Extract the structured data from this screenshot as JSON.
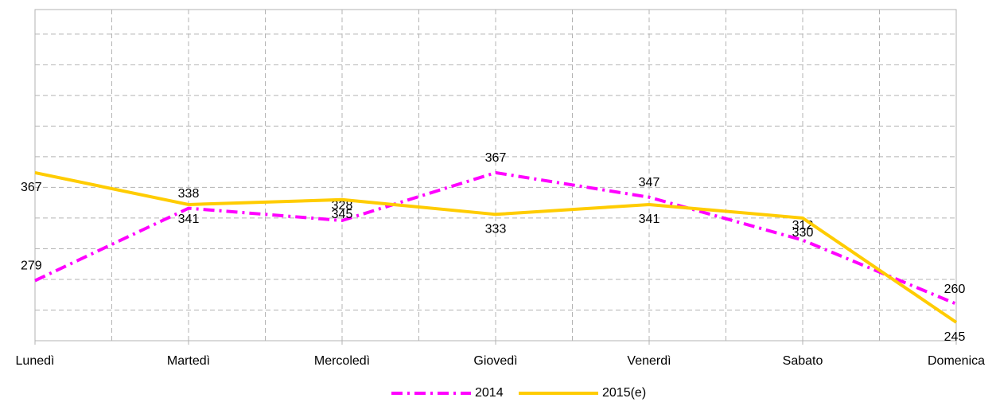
{
  "chart_data": {
    "type": "line",
    "categories": [
      "Lunedì",
      "Martedì",
      "Mercoledì",
      "Giovedì",
      "Venerdì",
      "Sabato",
      "Domenica"
    ],
    "series": [
      {
        "name": "2014",
        "color": "#ff00ff",
        "dash": "dash-dot",
        "values": [
          279,
          338,
          328,
          367,
          347,
          312,
          260
        ]
      },
      {
        "name": "2015(e)",
        "color": "#ffcc00",
        "dash": "solid",
        "values": [
          367,
          341,
          345,
          333,
          341,
          330,
          245
        ]
      }
    ],
    "ylim": [
      230,
      500
    ],
    "yticks": [
      230,
      255,
      280,
      305,
      330,
      355,
      380,
      405,
      430,
      455,
      480
    ],
    "grid": true,
    "legend": "bottom"
  }
}
